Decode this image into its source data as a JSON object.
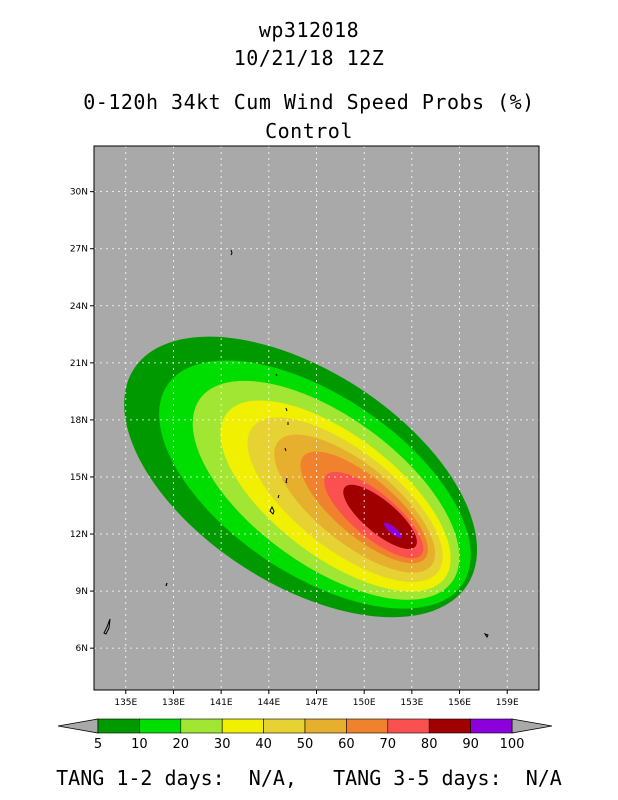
{
  "title": {
    "storm_id": "wp312018",
    "datetime": "10/21/18 12Z",
    "product": "0-120h 34kt Cum Wind Speed Probs (%)",
    "run": "Control"
  },
  "map": {
    "background_color": "#a9a9a9",
    "lon_range": [
      133,
      161
    ],
    "lat_range": [
      3.8,
      32.4
    ],
    "lon_ticks": [
      "135E",
      "138E",
      "141E",
      "144E",
      "147E",
      "150E",
      "153E",
      "156E",
      "159E"
    ],
    "lat_ticks": [
      "6N",
      "9N",
      "12N",
      "15N",
      "18N",
      "21N",
      "24N",
      "27N",
      "30N"
    ],
    "grid": true,
    "grid_style": "dotted"
  },
  "colorbar": {
    "labels": [
      "5",
      "10",
      "20",
      "30",
      "40",
      "50",
      "60",
      "70",
      "80",
      "90",
      "100"
    ],
    "colors": [
      "#009a00",
      "#00dd00",
      "#a0e632",
      "#f0f000",
      "#e6d232",
      "#e6af2d",
      "#f0822d",
      "#fa5050",
      "#a00000",
      "#8c00dc"
    ],
    "end_arrow_color": "#a9a9a9"
  },
  "chart_data": {
    "type": "heatmap",
    "contours": [
      {
        "level": 5,
        "center": [
          146.0,
          15.0
        ],
        "axes": [
          12.5,
          5.6
        ],
        "angle": -33
      },
      {
        "level": 10,
        "center": [
          146.9,
          14.6
        ],
        "axes": [
          11.2,
          4.7
        ],
        "angle": -34
      },
      {
        "level": 20,
        "center": [
          147.6,
          14.3
        ],
        "axes": [
          9.8,
          3.9
        ],
        "angle": -36
      },
      {
        "level": 30,
        "center": [
          148.2,
          14.0
        ],
        "axes": [
          8.6,
          3.2
        ],
        "angle": -37
      },
      {
        "level": 40,
        "center": [
          148.8,
          13.8
        ],
        "axes": [
          7.4,
          2.6
        ],
        "angle": -38
      },
      {
        "level": 50,
        "center": [
          149.4,
          13.6
        ],
        "axes": [
          6.2,
          2.05
        ],
        "angle": -39
      },
      {
        "level": 60,
        "center": [
          150.0,
          13.4
        ],
        "axes": [
          5.0,
          1.55
        ],
        "angle": -40
      },
      {
        "level": 70,
        "center": [
          150.6,
          13.0
        ],
        "axes": [
          3.9,
          1.15
        ],
        "angle": -40
      },
      {
        "level": 80,
        "center": [
          151.0,
          12.9
        ],
        "axes": [
          2.9,
          0.85
        ],
        "angle": -40
      },
      {
        "level": 90,
        "center": [
          151.8,
          12.2
        ],
        "axes": [
          0.7,
          0.18
        ],
        "angle": -40
      }
    ]
  },
  "footer": {
    "text": "TANG 1-2 days:  N/A,   TANG 3-5 days:  N/A"
  }
}
